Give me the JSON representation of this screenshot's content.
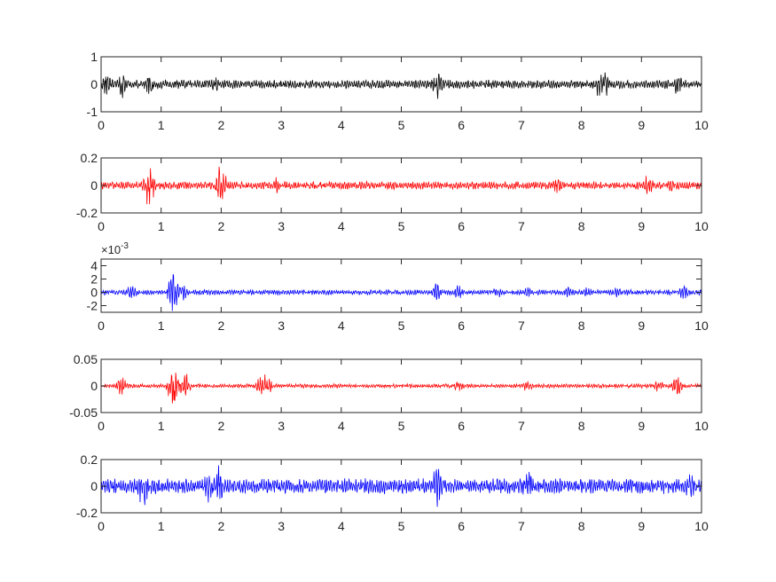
{
  "chart_data": [
    {
      "type": "line",
      "color": "#000000",
      "x_range": [
        0,
        10
      ],
      "xlim": [
        0,
        10
      ],
      "ylim": [
        -1,
        1
      ],
      "x_ticks": [
        "0",
        "1",
        "2",
        "3",
        "4",
        "5",
        "6",
        "7",
        "8",
        "9",
        "10"
      ],
      "y_ticks": [
        "1",
        "0",
        "-1"
      ],
      "y_tick_values": [
        1,
        0,
        -1
      ],
      "exponent_label": "",
      "envelope": {
        "baseline": 0.17,
        "bursts": [
          [
            0.1,
            0.45
          ],
          [
            0.35,
            0.55
          ],
          [
            0.8,
            0.45
          ],
          [
            1.9,
            0.3
          ],
          [
            5.6,
            0.55
          ],
          [
            8.3,
            0.6
          ],
          [
            8.4,
            0.5
          ],
          [
            9.6,
            0.4
          ]
        ]
      }
    },
    {
      "type": "line",
      "color": "#ff0000",
      "x_range": [
        0,
        10
      ],
      "xlim": [
        0,
        10
      ],
      "ylim": [
        -0.2,
        0.2
      ],
      "x_ticks": [
        "0",
        "1",
        "2",
        "3",
        "4",
        "5",
        "6",
        "7",
        "8",
        "9",
        "10"
      ],
      "y_ticks": [
        "0.2",
        "0",
        "-0.2"
      ],
      "y_tick_values": [
        0.2,
        0,
        -0.2
      ],
      "exponent_label": "",
      "envelope": {
        "baseline": 0.03,
        "bursts": [
          [
            0.8,
            0.17
          ],
          [
            2.0,
            0.17
          ],
          [
            2.9,
            0.08
          ],
          [
            7.6,
            0.06
          ],
          [
            9.1,
            0.09
          ],
          [
            9.5,
            0.05
          ]
        ]
      }
    },
    {
      "type": "line",
      "color": "#0000ff",
      "x_range": [
        0,
        10
      ],
      "xlim": [
        0,
        10
      ],
      "ylim": [
        -0.003,
        0.005
      ],
      "x_ticks": [
        "0",
        "1",
        "2",
        "3",
        "4",
        "5",
        "6",
        "7",
        "8",
        "9",
        "10"
      ],
      "y_ticks": [
        "4",
        "2",
        "0",
        "-2"
      ],
      "y_tick_values": [
        0.004,
        0.002,
        0,
        -0.002
      ],
      "exponent_label": "×10",
      "exponent_power": "-3",
      "envelope": {
        "baseline": 0.0004,
        "bursts": [
          [
            0.5,
            0.0012
          ],
          [
            1.2,
            0.0035
          ],
          [
            1.35,
            0.0015
          ],
          [
            5.6,
            0.0016
          ],
          [
            5.95,
            0.0012
          ],
          [
            6.6,
            0.0009
          ],
          [
            7.1,
            0.0008
          ],
          [
            7.8,
            0.0009
          ],
          [
            8.1,
            0.0009
          ],
          [
            8.6,
            0.0008
          ],
          [
            9.7,
            0.0012
          ]
        ]
      }
    },
    {
      "type": "line",
      "color": "#ff0000",
      "x_range": [
        0,
        10
      ],
      "xlim": [
        0,
        10
      ],
      "ylim": [
        -0.05,
        0.05
      ],
      "x_ticks": [
        "0",
        "1",
        "2",
        "3",
        "4",
        "5",
        "6",
        "7",
        "8",
        "9",
        "10"
      ],
      "y_ticks": [
        "0.05",
        "0",
        "-0.05"
      ],
      "y_tick_values": [
        0.05,
        0,
        -0.05
      ],
      "exponent_label": "",
      "envelope": {
        "baseline": 0.004,
        "bursts": [
          [
            0.35,
            0.02
          ],
          [
            1.2,
            0.045
          ],
          [
            1.4,
            0.03
          ],
          [
            2.65,
            0.02
          ],
          [
            2.75,
            0.025
          ],
          [
            5.95,
            0.012
          ],
          [
            7.1,
            0.012
          ],
          [
            9.3,
            0.015
          ],
          [
            9.6,
            0.02
          ]
        ]
      }
    },
    {
      "type": "line",
      "color": "#0000ff",
      "x_range": [
        0,
        10
      ],
      "xlim": [
        0,
        10
      ],
      "ylim": [
        -0.2,
        0.2
      ],
      "x_ticks": [
        "0",
        "1",
        "2",
        "3",
        "4",
        "5",
        "6",
        "7",
        "8",
        "9",
        "10"
      ],
      "y_ticks": [
        "0.2",
        "0",
        "-0.2"
      ],
      "y_tick_values": [
        0.2,
        0,
        -0.2
      ],
      "exponent_label": "",
      "envelope": {
        "baseline": 0.06,
        "bursts": [
          [
            0.7,
            0.17
          ],
          [
            1.8,
            0.15
          ],
          [
            1.95,
            0.2
          ],
          [
            5.6,
            0.17
          ],
          [
            7.1,
            0.14
          ],
          [
            9.8,
            0.13
          ]
        ]
      }
    }
  ]
}
